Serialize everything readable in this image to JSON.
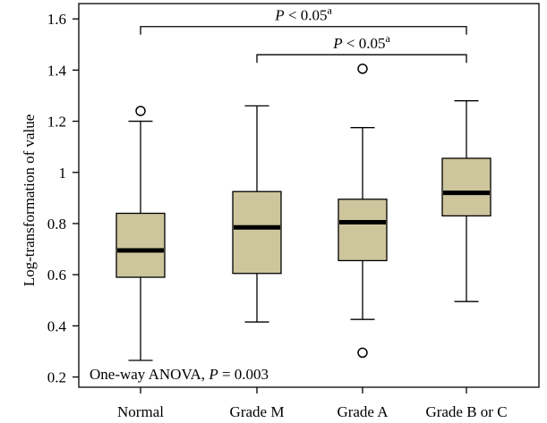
{
  "chart_data": {
    "type": "boxplot",
    "ylabel": "Log-transformation of value",
    "ylim": [
      0.16,
      1.66
    ],
    "yticks": [
      "0.2",
      "0.4",
      "0.6",
      "0.8",
      "1",
      "1.2",
      "1.4",
      "1.6"
    ],
    "yticks_values": [
      0.2,
      0.4,
      0.6,
      0.8,
      1.0,
      1.2,
      1.4,
      1.6
    ],
    "categories": [
      "Normal",
      "Grade M",
      "Grade A",
      "Grade B or C"
    ],
    "box_color": "#cdc59c",
    "boxes": [
      {
        "whisker_low": 0.265,
        "q1": 0.59,
        "median": 0.695,
        "q3": 0.84,
        "whisker_high": 1.2,
        "outliers": [
          1.24
        ]
      },
      {
        "whisker_low": 0.415,
        "q1": 0.605,
        "median": 0.785,
        "q3": 0.925,
        "whisker_high": 1.26,
        "outliers": []
      },
      {
        "whisker_low": 0.425,
        "q1": 0.655,
        "median": 0.805,
        "q3": 0.895,
        "whisker_high": 1.175,
        "outliers": [
          1.405,
          0.295
        ]
      },
      {
        "whisker_low": 0.495,
        "q1": 0.83,
        "median": 0.92,
        "q3": 1.055,
        "whisker_high": 1.28,
        "outliers": []
      }
    ],
    "comparisons": [
      {
        "from": 0,
        "to": 3,
        "y": 1.57,
        "label_italic": "P",
        "label_rest": " < 0.05",
        "label_sup": "a"
      },
      {
        "from": 1,
        "to": 3,
        "y": 1.46,
        "label_italic": "P",
        "label_rest": " < 0.05",
        "label_sup": "a"
      }
    ],
    "annotation": {
      "text_prefix": "One-way ANOVA, ",
      "text_italic": "P",
      "text_suffix": " = 0.003"
    }
  }
}
